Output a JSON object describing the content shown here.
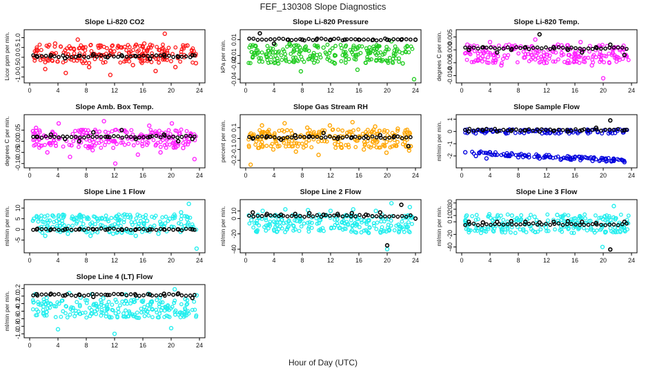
{
  "figure": {
    "title": "FEF_130308  Slope Diagnostics",
    "xlabel": "Hour of Day (UTC)"
  },
  "colors": {
    "red": "#ff1a1a",
    "green": "#22cc22",
    "magenta": "#ff22ff",
    "orange": "#ffa500",
    "blue": "#0000dd",
    "cyan": "#22eeee",
    "black": "#000000"
  },
  "chart_data": [
    {
      "type": "scatter",
      "title": "Slope Li-820 CO2",
      "ylabel": "Licor ppm per min.",
      "xlim": [
        0,
        24
      ],
      "ylim": [
        -1.2,
        1.3
      ],
      "xticks": [
        "0",
        "4",
        "8",
        "12",
        "16",
        "20",
        "24"
      ],
      "yticks": [
        "-1.0",
        "-0.5",
        "0.0",
        "0.5",
        "1.0"
      ],
      "ytick_values": [
        -1.0,
        -0.5,
        0.0,
        0.5,
        1.0
      ],
      "series": [
        {
          "name": "all",
          "color": "#ff1a1a",
          "x": [
            1.0,
            2.2,
            3.6,
            5.1,
            6.8,
            8.4,
            9.9,
            11.4,
            13.0,
            14.6,
            16.2,
            17.8,
            19.1,
            20.6,
            22.3,
            23.5
          ],
          "y": [
            0.4,
            -0.6,
            0.7,
            -0.8,
            0.9,
            -0.5,
            0.6,
            -0.9,
            0.5,
            -0.4,
            0.7,
            -0.7,
            1.2,
            -0.5,
            0.6,
            -0.3
          ]
        },
        {
          "name": "hourly",
          "color": "#000000",
          "x": [
            1,
            3,
            5,
            7,
            9,
            11,
            13,
            15,
            17,
            19,
            21,
            23
          ],
          "y": [
            0.05,
            0.1,
            -0.05,
            0.08,
            0.15,
            0.0,
            0.1,
            0.05,
            -0.08,
            0.12,
            0.02,
            0.1
          ]
        }
      ]
    },
    {
      "type": "scatter",
      "title": "Slope Li-820 Pressure",
      "ylabel": "kPa per min.",
      "xlim": [
        0,
        24
      ],
      "ylim": [
        -0.042,
        0.02
      ],
      "xticks": [
        "0",
        "4",
        "8",
        "12",
        "16",
        "20",
        "24"
      ],
      "yticks": [
        "-0.04",
        "-0.02",
        "-0.01",
        "0.01"
      ],
      "ytick_values": [
        -0.04,
        -0.02,
        -0.01,
        0.01
      ],
      "series": [
        {
          "name": "all",
          "color": "#22cc22",
          "x": [
            1.4,
            3.0,
            4.6,
            6.2,
            7.8,
            9.4,
            11.0,
            12.6,
            14.2,
            15.8,
            17.4,
            19.0,
            20.6,
            22.2,
            23.8
          ],
          "y": [
            0.002,
            -0.012,
            -0.02,
            0.005,
            -0.03,
            -0.015,
            0.0,
            -0.02,
            -0.01,
            -0.028,
            -0.005,
            -0.016,
            0.008,
            -0.02,
            -0.04
          ]
        },
        {
          "name": "hourly",
          "color": "#000000",
          "x": [
            2,
            4,
            6,
            8,
            10,
            12,
            14,
            16,
            18,
            20,
            22,
            24
          ],
          "y": [
            0.018,
            0.005,
            0.01,
            0.01,
            0.01,
            0.01,
            0.01,
            0.01,
            0.01,
            0.01,
            0.01,
            0.01
          ]
        }
      ]
    },
    {
      "type": "scatter",
      "title": "Slope Li-820 Temp.",
      "ylabel": "degrees C per min.",
      "xlim": [
        0,
        24
      ],
      "ylim": [
        -0.012,
        0.007
      ],
      "xticks": [
        "0",
        "4",
        "8",
        "12",
        "16",
        "20",
        "24"
      ],
      "yticks": [
        "-0.010",
        "-0.005",
        "0.000",
        "0.005"
      ],
      "ytick_values": [
        -0.01,
        -0.005,
        0.0,
        0.005
      ],
      "series": [
        {
          "name": "all",
          "color": "#ff22ff",
          "x": [
            0.8,
            2.4,
            4.0,
            5.6,
            7.2,
            8.8,
            10.4,
            12.0,
            13.6,
            15.2,
            16.8,
            18.4,
            20.0,
            21.6,
            23.2
          ],
          "y": [
            0.002,
            -0.004,
            0.003,
            -0.006,
            0.001,
            -0.003,
            0.004,
            -0.005,
            0.002,
            -0.002,
            0.003,
            -0.006,
            -0.011,
            0.001,
            -0.002
          ]
        },
        {
          "name": "hourly",
          "color": "#000000",
          "x": [
            1,
            3,
            5,
            7,
            9,
            11,
            13,
            15,
            17,
            19,
            21,
            23
          ],
          "y": [
            0.0,
            0.001,
            -0.001,
            0.0,
            0.001,
            0.006,
            0.001,
            0.0,
            -0.001,
            0.001,
            0.002,
            -0.002
          ]
        }
      ]
    },
    {
      "type": "scatter",
      "title": "Slope Amb. Box Temp.",
      "ylabel": "degrees C per min.",
      "xlim": [
        0,
        24
      ],
      "ylim": [
        -0.11,
        0.11
      ],
      "xticks": [
        "0",
        "4",
        "8",
        "12",
        "16",
        "20",
        "24"
      ],
      "yticks": [
        "-0.10",
        "-0.05",
        "0.00",
        "0.05"
      ],
      "ytick_values": [
        -0.1,
        -0.05,
        0.0,
        0.05
      ],
      "series": [
        {
          "name": "all",
          "color": "#ff22ff",
          "x": [
            0.9,
            2.5,
            4.1,
            5.7,
            7.3,
            8.9,
            10.5,
            12.1,
            13.7,
            15.3,
            16.9,
            18.5,
            20.1,
            21.7,
            23.3
          ],
          "y": [
            0.06,
            -0.05,
            0.08,
            -0.07,
            0.05,
            -0.04,
            0.09,
            -0.1,
            0.04,
            -0.06,
            0.07,
            -0.05,
            0.08,
            -0.03,
            -0.08
          ]
        },
        {
          "name": "hourly",
          "color": "#000000",
          "x": [
            1,
            3,
            5,
            7,
            9,
            11,
            13,
            15,
            17,
            19,
            21,
            23
          ],
          "y": [
            0.02,
            0.03,
            0.01,
            0.0,
            0.04,
            0.02,
            0.05,
            0.01,
            0.02,
            0.03,
            0.0,
            0.01
          ]
        }
      ]
    },
    {
      "type": "scatter",
      "title": "Slope Gas Stream RH",
      "ylabel": "percent per min.",
      "xlim": [
        0,
        24
      ],
      "ylim": [
        -0.25,
        0.2
      ],
      "xticks": [
        "0",
        "4",
        "8",
        "12",
        "16",
        "20",
        "24"
      ],
      "yticks": [
        "-0.2",
        "-0.1",
        "0.0",
        "0.1"
      ],
      "ytick_values": [
        -0.2,
        -0.1,
        0.0,
        0.1
      ],
      "series": [
        {
          "name": "all",
          "color": "#ffa500",
          "x": [
            0.7,
            2.3,
            3.9,
            5.5,
            7.1,
            8.7,
            10.3,
            11.9,
            13.5,
            15.1,
            16.7,
            18.3,
            19.9,
            21.5,
            23.1
          ],
          "y": [
            -0.24,
            0.12,
            -0.1,
            0.14,
            -0.12,
            0.1,
            -0.15,
            0.12,
            -0.08,
            0.15,
            -0.1,
            0.11,
            -0.13,
            0.09,
            -0.11
          ]
        },
        {
          "name": "hourly",
          "color": "#000000",
          "x": [
            1,
            3,
            5,
            7,
            9,
            11,
            13,
            15,
            17,
            19,
            21,
            23
          ],
          "y": [
            0.0,
            0.02,
            -0.01,
            0.03,
            0.02,
            0.05,
            0.0,
            0.01,
            0.02,
            0.03,
            0.02,
            -0.07
          ]
        }
      ]
    },
    {
      "type": "scatter",
      "title": "Slope Sample Flow",
      "ylabel": "ml/min per min.",
      "xlim": [
        0,
        24
      ],
      "ylim": [
        -2.8,
        1.2
      ],
      "xticks": [
        "0",
        "4",
        "8",
        "12",
        "16",
        "20",
        "24"
      ],
      "yticks": [
        "-2",
        "-1",
        "0",
        "1"
      ],
      "ytick_values": [
        -2,
        -1,
        0,
        1
      ],
      "series": [
        {
          "name": "all",
          "color": "#0000dd",
          "x": [
            0.5,
            2.0,
            3.5,
            5.0,
            6.5,
            8.0,
            9.5,
            11.0,
            12.5,
            14.0,
            15.5,
            17.0,
            18.5,
            20.0,
            21.5,
            23.0
          ],
          "y": [
            -1.7,
            -2.0,
            -2.2,
            -1.9,
            -2.0,
            -2.1,
            -2.1,
            -2.2,
            -2.1,
            -2.3,
            -2.3,
            -2.2,
            -2.4,
            -2.3,
            -2.4,
            -2.5
          ]
        },
        {
          "name": "hourly",
          "color": "#000000",
          "x": [
            1,
            3,
            5,
            7,
            9,
            11,
            13,
            15,
            17,
            19,
            21,
            23
          ],
          "y": [
            0.0,
            0.1,
            0.0,
            0.05,
            0.1,
            0.0,
            0.05,
            0.0,
            0.1,
            0.3,
            0.9,
            0.1
          ]
        }
      ]
    },
    {
      "type": "scatter",
      "title": "Slope Line 1 Flow",
      "ylabel": "ml/min per min.",
      "xlim": [
        0,
        24
      ],
      "ylim": [
        -10,
        13
      ],
      "xticks": [
        "0",
        "4",
        "8",
        "12",
        "16",
        "20",
        "24"
      ],
      "yticks": [
        "-5",
        "0",
        "5",
        "10"
      ],
      "ytick_values": [
        -5,
        0,
        5,
        10
      ],
      "series": [
        {
          "name": "all",
          "color": "#22eeee",
          "x": [
            0.6,
            2.2,
            3.8,
            5.4,
            7.0,
            8.6,
            10.2,
            11.8,
            13.4,
            15.0,
            16.6,
            18.2,
            19.8,
            21.4,
            22.5,
            23.6
          ],
          "y": [
            5,
            -3,
            4,
            -2,
            6,
            -3,
            5,
            -2,
            7,
            -3,
            4,
            -2,
            5,
            8,
            12,
            -9
          ]
        },
        {
          "name": "hourly",
          "color": "#000000",
          "x": [
            1,
            3,
            5,
            7,
            9,
            11,
            13,
            15,
            17,
            19,
            21,
            23
          ],
          "y": [
            0,
            0,
            0,
            0,
            0,
            0,
            0,
            0,
            0,
            0,
            0,
            0
          ]
        }
      ]
    },
    {
      "type": "scatter",
      "title": "Slope Line 2 Flow",
      "ylabel": "ml/min per min.",
      "xlim": [
        0,
        24
      ],
      "ylim": [
        -42,
        22
      ],
      "xticks": [
        "0",
        "4",
        "8",
        "12",
        "16",
        "20",
        "24"
      ],
      "yticks": [
        "-40",
        "-20",
        "0",
        "10"
      ],
      "ytick_values": [
        -40,
        -20,
        0,
        10
      ],
      "series": [
        {
          "name": "all",
          "color": "#22eeee",
          "x": [
            0.8,
            2.4,
            4.0,
            5.6,
            7.2,
            8.8,
            10.4,
            12.0,
            13.6,
            15.2,
            16.8,
            18.4,
            20.0,
            20.6,
            21.6,
            23.2
          ],
          "y": [
            -2,
            10,
            -4,
            12,
            -3,
            11,
            -2,
            10,
            -5,
            12,
            -3,
            10,
            -40,
            20,
            -8,
            15
          ]
        },
        {
          "name": "hourly",
          "color": "#000000",
          "x": [
            1,
            3,
            5,
            7,
            9,
            11,
            13,
            15,
            17,
            19,
            20,
            22,
            24
          ],
          "y": [
            8,
            6,
            5,
            6,
            7,
            5,
            6,
            7,
            5,
            8,
            -35,
            18,
            0
          ]
        }
      ]
    },
    {
      "type": "scatter",
      "title": "Slope Line 3 Flow",
      "ylabel": "ml/min per min.",
      "xlim": [
        0,
        24
      ],
      "ylim": [
        -46,
        32
      ],
      "xticks": [
        "0",
        "4",
        "8",
        "12",
        "16",
        "20",
        "24"
      ],
      "yticks": [
        "-40",
        "-20",
        "0",
        "10",
        "20",
        "30"
      ],
      "ytick_values": [
        -40,
        -20,
        0,
        10,
        20,
        30
      ],
      "series": [
        {
          "name": "all",
          "color": "#22eeee",
          "x": [
            0.7,
            2.3,
            3.9,
            5.5,
            7.1,
            8.7,
            10.3,
            11.9,
            13.5,
            15.1,
            16.7,
            18.3,
            19.9,
            21.5,
            23.1
          ],
          "y": [
            10,
            -10,
            12,
            -8,
            10,
            -12,
            8,
            -9,
            11,
            -10,
            9,
            -12,
            -40,
            25,
            -15
          ]
        },
        {
          "name": "hourly",
          "color": "#000000",
          "x": [
            1,
            3,
            5,
            7,
            9,
            11,
            13,
            15,
            17,
            19,
            21,
            23
          ],
          "y": [
            0,
            -1,
            0,
            1,
            0,
            -1,
            0,
            1,
            0,
            -2,
            -44,
            0
          ]
        }
      ]
    },
    {
      "type": "scatter",
      "title": "Slope Line 4 (LT) Flow",
      "ylabel": "ml/min per min.",
      "xlim": [
        0,
        24
      ],
      "ylim": [
        -1.05,
        0.25
      ],
      "xticks": [
        "0",
        "4",
        "8",
        "12",
        "16",
        "20",
        "24"
      ],
      "yticks": [
        "-1.0",
        "-0.8",
        "-0.6",
        "-0.4",
        "-0.2",
        "0.0",
        "0.2"
      ],
      "ytick_values": [
        -1.0,
        -0.8,
        -0.6,
        -0.4,
        -0.2,
        0.0,
        0.2
      ],
      "series": [
        {
          "name": "all",
          "color": "#22eeee",
          "x": [
            0.8,
            2.4,
            4.0,
            5.6,
            7.2,
            8.8,
            10.4,
            12.0,
            13.6,
            15.2,
            16.8,
            18.4,
            20.0,
            20.5,
            22.0,
            23.6
          ],
          "y": [
            0.05,
            -0.05,
            -0.88,
            0.08,
            -0.04,
            0.05,
            -0.06,
            -1.0,
            0.04,
            -0.05,
            0.06,
            -0.04,
            -0.85,
            0.18,
            -0.08,
            0.02
          ]
        },
        {
          "name": "hourly",
          "color": "#000000",
          "x": [
            1,
            3,
            5,
            7,
            9,
            11,
            13,
            15,
            17,
            19,
            21,
            23
          ],
          "y": [
            0.05,
            0.06,
            0.02,
            0.04,
            -0.02,
            0.03,
            0.05,
            0.02,
            0.04,
            0.06,
            0.07,
            -0.05
          ]
        }
      ]
    }
  ]
}
